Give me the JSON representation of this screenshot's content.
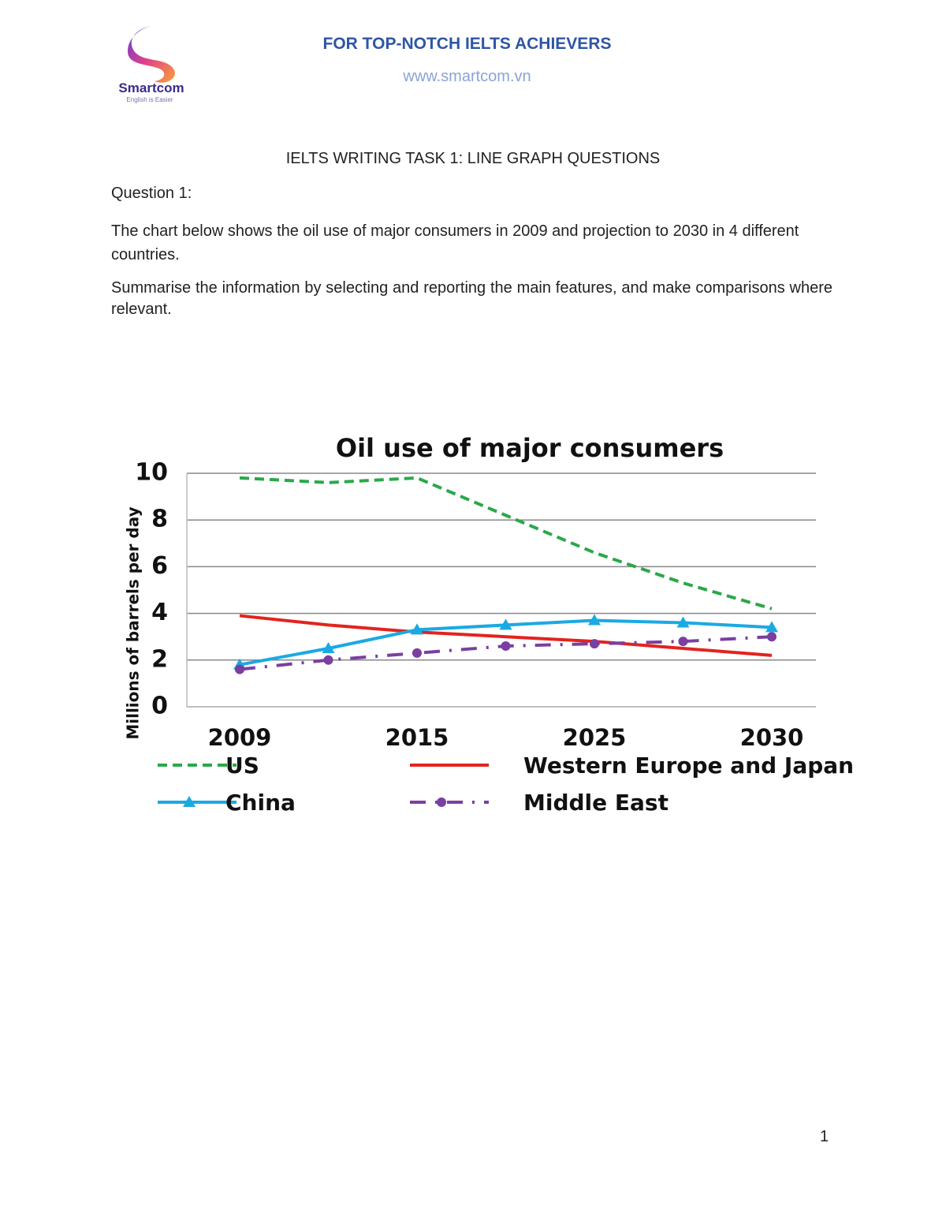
{
  "header": {
    "logo_name": "Smartcom",
    "logo_tagline": "English is Easier",
    "title": "FOR TOP-NOTCH IELTS ACHIEVERS",
    "website": "www.smartcom.vn"
  },
  "heading": "IELTS WRITING TASK 1: LINE GRAPH QUESTIONS",
  "question_label": "Question 1:",
  "paragraphs": [
    "The chart below shows the oil use of major consumers in 2009 and projection to 2030 in 4 different countries.",
    "Summarise the information by selecting and reporting the main features, and make comparisons where relevant."
  ],
  "page_number": "1",
  "chart_data": {
    "type": "line",
    "title": "Oil use of major consumers",
    "y_label": "Millions of barrels per day",
    "categories": [
      "2009",
      null,
      "2015",
      null,
      "2025",
      null,
      "2030"
    ],
    "series": [
      {
        "name": "US",
        "color": "#2aa84a",
        "dash": "dashed",
        "marker": "none",
        "values": [
          9.8,
          9.6,
          9.8,
          8.2,
          6.6,
          5.3,
          4.2
        ]
      },
      {
        "name": "Western Europe and Japan",
        "color": "#e3231f",
        "dash": "solid",
        "marker": "none",
        "values": [
          3.9,
          3.5,
          3.2,
          3.0,
          2.8,
          2.5,
          2.2
        ]
      },
      {
        "name": "China",
        "color": "#1ba9e3",
        "dash": "solid",
        "marker": "triangle",
        "values": [
          1.8,
          2.5,
          3.3,
          3.5,
          3.7,
          3.6,
          3.4
        ]
      },
      {
        "name": "Middle East",
        "color": "#7a3fa0",
        "dash": "dashdot",
        "marker": "circle",
        "values": [
          1.6,
          2.0,
          2.3,
          2.6,
          2.7,
          2.8,
          3.0
        ]
      }
    ],
    "ylim": [
      0,
      10
    ],
    "yticks": [
      0,
      2,
      4,
      6,
      8,
      10
    ],
    "grid": true
  }
}
